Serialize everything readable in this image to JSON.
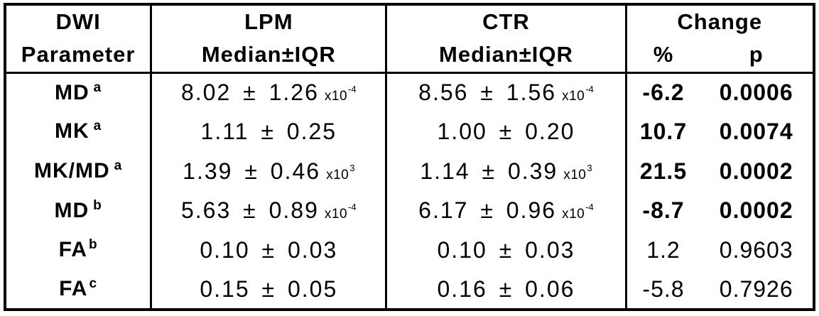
{
  "colors": {
    "background": "#ffffff",
    "text": "#000000",
    "border": "#000000"
  },
  "table": {
    "header": {
      "param_line1": "DWI",
      "param_line2": "Parameter",
      "lpm_line1": "LPM",
      "lpm_line2": "Median±IQR",
      "ctr_line1": "CTR",
      "ctr_line2": "Median±IQR",
      "change": "Change",
      "percent": "%",
      "p": "p"
    },
    "rows": [
      {
        "param": "MD",
        "param_sup": "a",
        "lpm": "8.02 ± 1.26",
        "lpm_x": "x10",
        "lpm_x_sup": "-4",
        "ctr": "8.56 ± 1.56",
        "ctr_x": "x10",
        "ctr_x_sup": "-4",
        "pct": "-6.2",
        "p": "0.0006",
        "significant": true
      },
      {
        "param": "MK",
        "param_sup": "a",
        "lpm": "1.11 ± 0.25",
        "lpm_x": "",
        "lpm_x_sup": "",
        "ctr": "1.00 ± 0.20",
        "ctr_x": "",
        "ctr_x_sup": "",
        "pct": "10.7",
        "p": "0.0074",
        "significant": true
      },
      {
        "param": "MK/MD",
        "param_sup": "a",
        "lpm": "1.39 ± 0.46",
        "lpm_x": "x10",
        "lpm_x_sup": "3",
        "ctr": "1.14 ± 0.39",
        "ctr_x": "x10",
        "ctr_x_sup": "3",
        "pct": "21.5",
        "p": "0.0002",
        "significant": true
      },
      {
        "param": "MD",
        "param_sup": "b",
        "lpm": "5.63 ± 0.89",
        "lpm_x": "x10",
        "lpm_x_sup": "-4",
        "ctr": "6.17 ± 0.96",
        "ctr_x": "x10",
        "ctr_x_sup": "-4",
        "pct": "-8.7",
        "p": "0.0002",
        "significant": true
      },
      {
        "param": "FA",
        "param_sup": "b",
        "lpm": "0.10 ± 0.03",
        "lpm_x": "",
        "lpm_x_sup": "",
        "ctr": "0.10 ± 0.03",
        "ctr_x": "",
        "ctr_x_sup": "",
        "pct": "1.2",
        "p": "0.9603",
        "significant": false
      },
      {
        "param": "FA",
        "param_sup": "c",
        "lpm": "0.15 ± 0.05",
        "lpm_x": "",
        "lpm_x_sup": "",
        "ctr": "0.16 ± 0.06",
        "ctr_x": "",
        "ctr_x_sup": "",
        "pct": "-5.8",
        "p": "0.7926",
        "significant": false
      }
    ]
  }
}
